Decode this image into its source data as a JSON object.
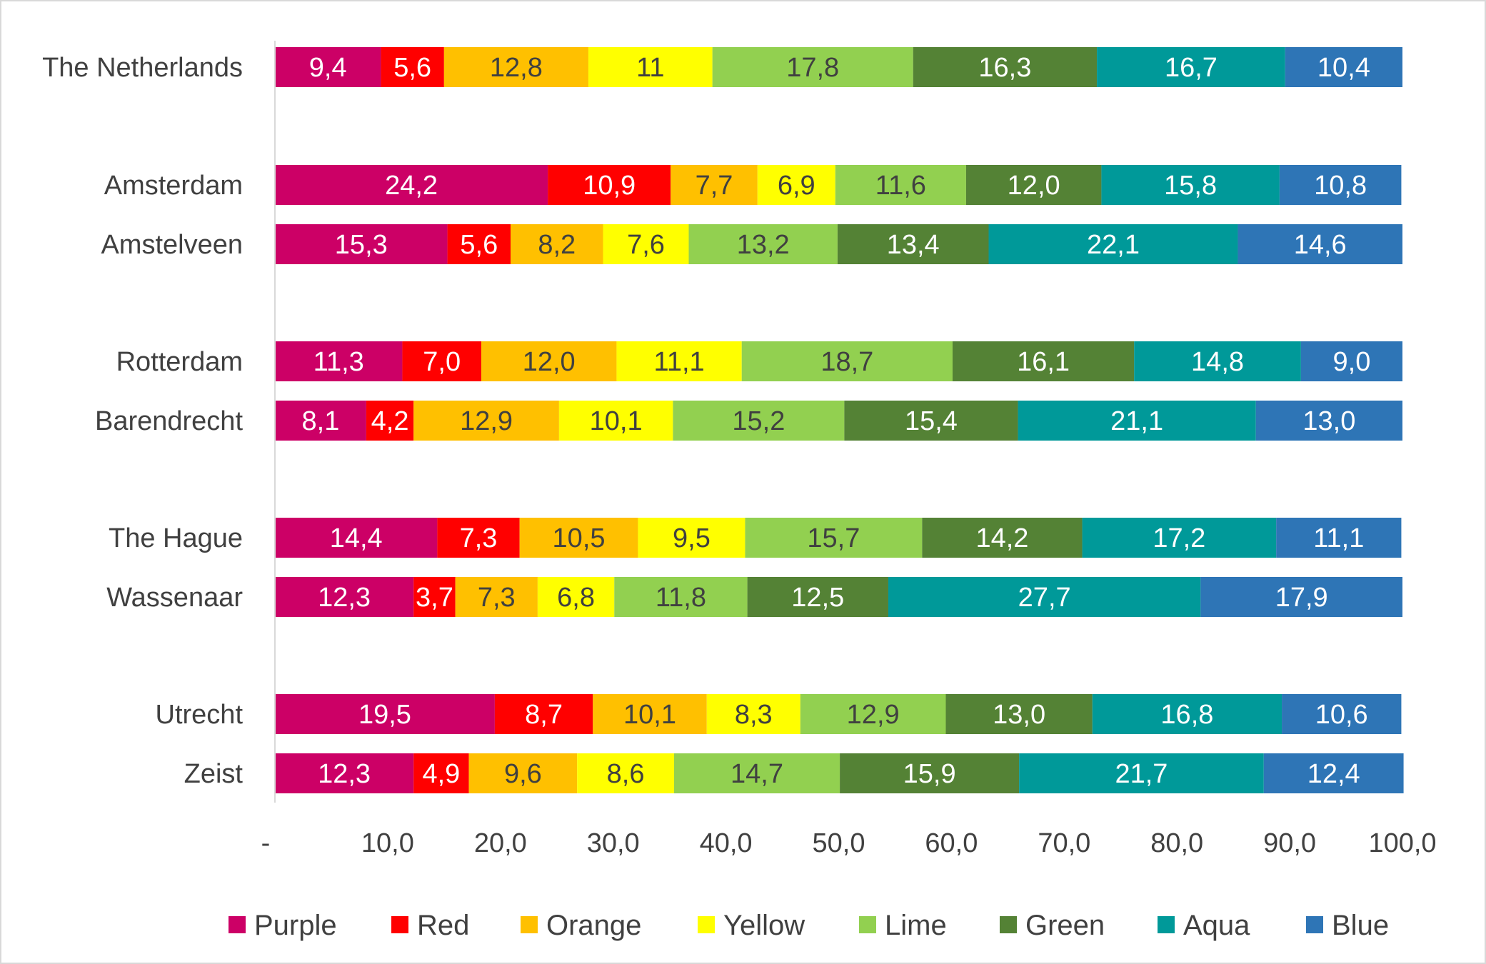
{
  "chart_data": {
    "type": "bar",
    "orientation": "horizontal",
    "stacked": true,
    "title": "",
    "xlabel": "",
    "ylabel": "",
    "xlim": [
      0,
      100
    ],
    "x_ticks": [
      "-",
      "10,0",
      "20,0",
      "30,0",
      "40,0",
      "50,0",
      "60,0",
      "70,0",
      "80,0",
      "90,0",
      "100,0"
    ],
    "grid": false,
    "legend_position": "bottom",
    "categories": [
      "The Netherlands",
      "Amsterdam",
      "Amstelveen",
      "Rotterdam",
      "Barendrecht",
      "The Hague",
      "Wassenaar",
      "Utrecht",
      "Zeist"
    ],
    "series": [
      {
        "name": "Purple",
        "color": "#cc0066",
        "label_color": "#ffffff",
        "values": [
          9.4,
          24.2,
          15.3,
          11.3,
          8.1,
          14.4,
          12.3,
          19.5,
          12.3
        ],
        "labels": [
          "9,4",
          "24,2",
          "15,3",
          "11,3",
          "8,1",
          "14,4",
          "12,3",
          "19,5",
          "12,3"
        ]
      },
      {
        "name": "Red",
        "color": "#ff0000",
        "label_color": "#ffffff",
        "values": [
          5.6,
          10.9,
          5.6,
          7.0,
          4.2,
          7.3,
          3.7,
          8.7,
          4.9
        ],
        "labels": [
          "5,6",
          "10,9",
          "5,6",
          "7,0",
          "4,2",
          "7,3",
          "3,7",
          "8,7",
          "4,9"
        ]
      },
      {
        "name": "Orange",
        "color": "#ffc000",
        "label_color": "#404040",
        "values": [
          12.8,
          7.7,
          8.2,
          12.0,
          12.9,
          10.5,
          7.3,
          10.1,
          9.6
        ],
        "labels": [
          "12,8",
          "7,7",
          "8,2",
          "12,0",
          "12,9",
          "10,5",
          "7,3",
          "10,1",
          "9,6"
        ]
      },
      {
        "name": "Yellow",
        "color": "#ffff00",
        "label_color": "#404040",
        "values": [
          11,
          6.9,
          7.6,
          11.1,
          10.1,
          9.5,
          6.8,
          8.3,
          8.6
        ],
        "labels": [
          "11",
          "6,9",
          "7,6",
          "11,1",
          "10,1",
          "9,5",
          "6,8",
          "8,3",
          "8,6"
        ]
      },
      {
        "name": "Lime",
        "color": "#92d050",
        "label_color": "#404040",
        "values": [
          17.8,
          11.6,
          13.2,
          18.7,
          15.2,
          15.7,
          11.8,
          12.9,
          14.7
        ],
        "labels": [
          "17,8",
          "11,6",
          "13,2",
          "18,7",
          "15,2",
          "15,7",
          "11,8",
          "12,9",
          "14,7"
        ]
      },
      {
        "name": "Green",
        "color": "#548235",
        "label_color": "#ffffff",
        "values": [
          16.3,
          12.0,
          13.4,
          16.1,
          15.4,
          14.2,
          12.5,
          13.0,
          15.9
        ],
        "labels": [
          "16,3",
          "12,0",
          "13,4",
          "16,1",
          "15,4",
          "14,2",
          "12,5",
          "13,0",
          "15,9"
        ]
      },
      {
        "name": "Aqua",
        "color": "#009999",
        "label_color": "#ffffff",
        "values": [
          16.7,
          15.8,
          22.1,
          14.8,
          21.1,
          17.2,
          27.7,
          16.8,
          21.7
        ],
        "labels": [
          "16,7",
          "15,8",
          "22,1",
          "14,8",
          "21,1",
          "17,2",
          "27,7",
          "16,8",
          "21,7"
        ]
      },
      {
        "name": "Blue",
        "color": "#2e75b6",
        "label_color": "#ffffff",
        "values": [
          10.4,
          10.8,
          14.6,
          9.0,
          13.0,
          11.1,
          17.9,
          10.6,
          12.4
        ],
        "labels": [
          "10,4",
          "10,8",
          "14,6",
          "9,0",
          "13,0",
          "11,1",
          "17,9",
          "10,6",
          "12,4"
        ]
      }
    ]
  }
}
